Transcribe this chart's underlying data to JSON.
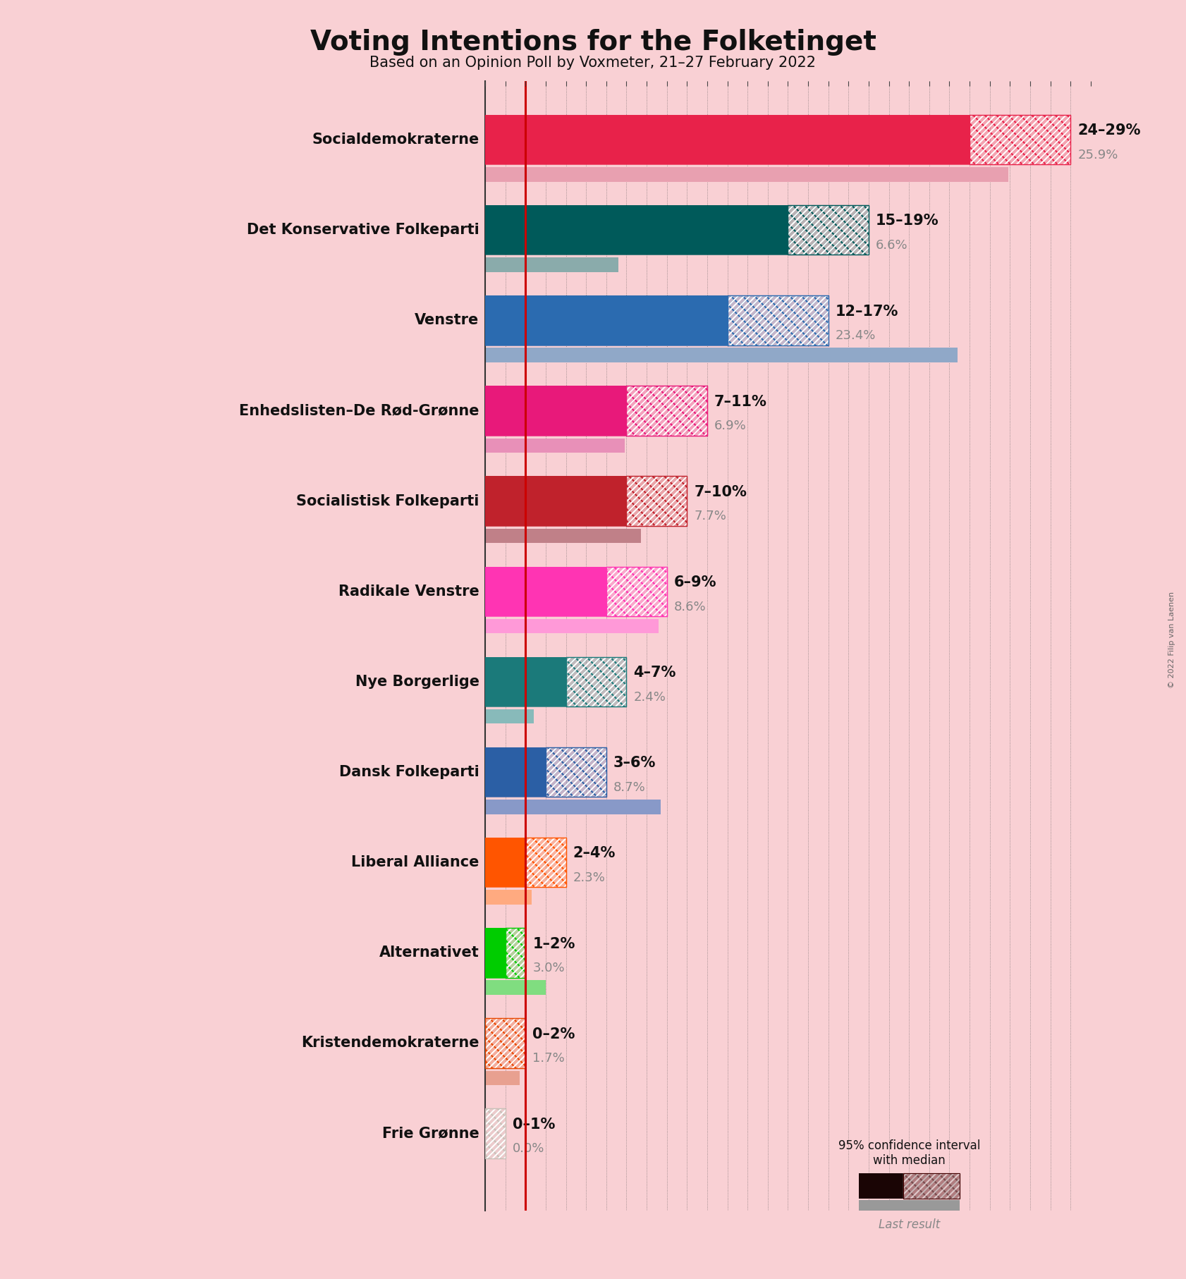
{
  "title": "Voting Intentions for the Folketinget",
  "subtitle": "Based on an Opinion Poll by Voxmeter, 21–27 February 2022",
  "credit": "© 2022 Filip van Laenen",
  "background_color": "#f9d0d4",
  "parties": [
    {
      "name": "Socialdemokraterne",
      "color": "#E8224A",
      "last_color": "#E8A0B0",
      "ci_low": 24,
      "ci_high": 29,
      "median": 25.9,
      "last": 25.9,
      "label": "24–29%",
      "last_label": "25.9%"
    },
    {
      "name": "Det Konservative Folkeparti",
      "color": "#005A5A",
      "last_color": "#8AABAB",
      "ci_low": 15,
      "ci_high": 19,
      "median": 17.0,
      "last": 6.6,
      "label": "15–19%",
      "last_label": "6.6%"
    },
    {
      "name": "Venstre",
      "color": "#2B6BB0",
      "last_color": "#90A8C8",
      "ci_low": 12,
      "ci_high": 17,
      "median": 14.5,
      "last": 23.4,
      "label": "12–17%",
      "last_label": "23.4%"
    },
    {
      "name": "Enhedslisten–De Rød-Grønne",
      "color": "#E8197A",
      "last_color": "#E890B8",
      "ci_low": 7,
      "ci_high": 11,
      "median": 9.0,
      "last": 6.9,
      "label": "7–11%",
      "last_label": "6.9%"
    },
    {
      "name": "Socialistisk Folkeparti",
      "color": "#C0222C",
      "last_color": "#C08088",
      "ci_low": 7,
      "ci_high": 10,
      "median": 8.5,
      "last": 7.7,
      "label": "7–10%",
      "last_label": "7.7%"
    },
    {
      "name": "Radikale Venstre",
      "color": "#FF34B3",
      "last_color": "#FF99D8",
      "ci_low": 6,
      "ci_high": 9,
      "median": 7.5,
      "last": 8.6,
      "label": "6–9%",
      "last_label": "8.6%"
    },
    {
      "name": "Nye Borgerlige",
      "color": "#1B7A7A",
      "last_color": "#88BABA",
      "ci_low": 4,
      "ci_high": 7,
      "median": 5.5,
      "last": 2.4,
      "label": "4–7%",
      "last_label": "2.4%"
    },
    {
      "name": "Dansk Folkeparti",
      "color": "#2B5FA5",
      "last_color": "#8899C8",
      "ci_low": 3,
      "ci_high": 6,
      "median": 4.5,
      "last": 8.7,
      "label": "3–6%",
      "last_label": "8.7%"
    },
    {
      "name": "Liberal Alliance",
      "color": "#FF5500",
      "last_color": "#FFAA80",
      "ci_low": 2,
      "ci_high": 4,
      "median": 3.0,
      "last": 2.3,
      "label": "2–4%",
      "last_label": "2.3%"
    },
    {
      "name": "Alternativet",
      "color": "#00CC00",
      "last_color": "#80DD80",
      "ci_low": 1,
      "ci_high": 2,
      "median": 1.5,
      "last": 3.0,
      "label": "1–2%",
      "last_label": "3.0%"
    },
    {
      "name": "Kristendemokraterne",
      "color": "#E84800",
      "last_color": "#E8A090",
      "ci_low": 0,
      "ci_high": 2,
      "median": 1.0,
      "last": 1.7,
      "label": "0–2%",
      "last_label": "1.7%"
    },
    {
      "name": "Frie Grønne",
      "color": "#C8C0B8",
      "last_color": "#C8C0B8",
      "ci_low": 0,
      "ci_high": 1,
      "median": 0.5,
      "last": 0.0,
      "label": "0–1%",
      "last_label": "0.0%"
    }
  ],
  "xmax": 30,
  "red_line_x": 2.0,
  "bar_height": 0.55,
  "last_bar_height": 0.16,
  "legend_label": "95% confidence interval\nwith median",
  "last_result_label": "Last result"
}
